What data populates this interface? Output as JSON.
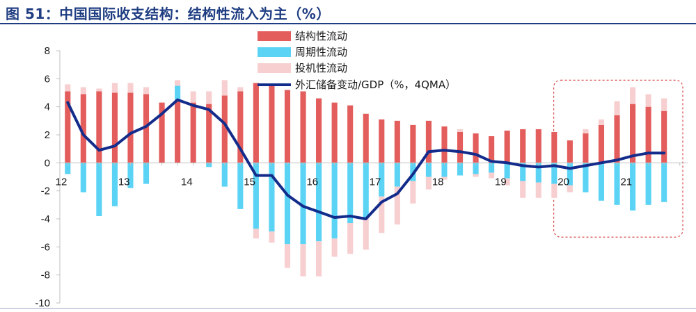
{
  "title": "图 51：中国国际收支结构：结构性流入为主（%）",
  "colors": {
    "structural": "#e35d5c",
    "cyclical": "#5bd3f5",
    "speculative": "#f7cfd0",
    "line": "#132c8b",
    "highlight": "#d94a4a",
    "title": "#1f3d82"
  },
  "chart_data": {
    "type": "bar",
    "stacked": true,
    "x": [
      "12Q1",
      "12Q2",
      "12Q3",
      "12Q4",
      "13Q1",
      "13Q2",
      "13Q3",
      "13Q4",
      "14Q1",
      "14Q2",
      "14Q3",
      "14Q4",
      "15Q1",
      "15Q2",
      "15Q3",
      "15Q4",
      "16Q1",
      "16Q2",
      "16Q3",
      "16Q4",
      "17Q1",
      "17Q2",
      "17Q3",
      "17Q4",
      "18Q1",
      "18Q2",
      "18Q3",
      "18Q4",
      "19Q1",
      "19Q2",
      "19Q3",
      "19Q4",
      "20Q1",
      "20Q2",
      "20Q3",
      "20Q4",
      "21Q1",
      "21Q2",
      "21Q3",
      "21Q4"
    ],
    "x_tick_labels": [
      "12",
      "13",
      "14",
      "15",
      "16",
      "17",
      "18",
      "19",
      "20",
      "21"
    ],
    "ylim": [
      -10,
      8
    ],
    "y_ticks": [
      8,
      6,
      4,
      2,
      0,
      -2,
      -4,
      -6,
      -8,
      -10
    ],
    "legend_position": "top-center",
    "series": [
      {
        "name": "结构性流动",
        "kind": "bar",
        "values": [
          5.1,
          4.9,
          5.1,
          5.0,
          5.0,
          4.9,
          4.3,
          4.5,
          4.3,
          4.2,
          4.8,
          5.1,
          5.7,
          5.5,
          5.2,
          5.1,
          4.6,
          4.3,
          4.1,
          3.5,
          3.1,
          3.0,
          2.7,
          3.0,
          2.6,
          2.2,
          2.1,
          1.9,
          2.3,
          2.4,
          2.4,
          2.2,
          1.6,
          2.1,
          2.7,
          3.4,
          4.2,
          4.0,
          3.7,
          null
        ]
      },
      {
        "name": "周期性流动",
        "kind": "bar",
        "values": [
          -0.8,
          -2.1,
          -3.8,
          -3.1,
          -1.8,
          -1.5,
          0.0,
          1.0,
          0.0,
          -0.3,
          -1.7,
          -3.3,
          -4.7,
          -4.9,
          -5.8,
          -5.8,
          -5.6,
          -5.4,
          -4.3,
          -3.9,
          -2.4,
          -1.7,
          -1.3,
          -1.0,
          -1.0,
          -0.9,
          -0.8,
          -0.7,
          -1.1,
          -1.3,
          -1.4,
          -1.5,
          -1.6,
          -2.1,
          -2.7,
          -3.0,
          -3.4,
          -3.0,
          -2.8,
          null
        ]
      },
      {
        "name": "投机性流动",
        "kind": "bar",
        "values": [
          0.5,
          0.5,
          0.2,
          0.7,
          0.7,
          0.5,
          0.0,
          0.4,
          0.8,
          0.9,
          1.1,
          0.3,
          -0.7,
          -0.8,
          -1.7,
          -2.3,
          -2.5,
          -1.3,
          -2.2,
          -2.3,
          -2.6,
          -2.7,
          -1.6,
          -0.9,
          -0.2,
          0.2,
          -0.2,
          -0.4,
          -0.5,
          -1.2,
          -1.1,
          -1.0,
          -0.5,
          0.3,
          0.4,
          1.0,
          1.2,
          0.9,
          0.9,
          null
        ]
      },
      {
        "name": "外汇储备变动/GDP（%，4QMA）",
        "kind": "line",
        "values": [
          4.3,
          2.0,
          0.9,
          1.2,
          2.1,
          2.6,
          3.5,
          4.5,
          4.1,
          3.8,
          2.8,
          1.0,
          -0.9,
          -0.9,
          -2.3,
          -3.1,
          -3.5,
          -3.9,
          -3.8,
          -4.0,
          -2.8,
          -2.2,
          -0.8,
          0.8,
          0.9,
          0.8,
          0.6,
          0.1,
          0.0,
          -0.2,
          -0.3,
          -0.2,
          -0.4,
          -0.2,
          0.0,
          0.2,
          0.5,
          0.7,
          0.7,
          null
        ]
      }
    ],
    "highlight_range": [
      "20Q1",
      "21Q4"
    ]
  }
}
